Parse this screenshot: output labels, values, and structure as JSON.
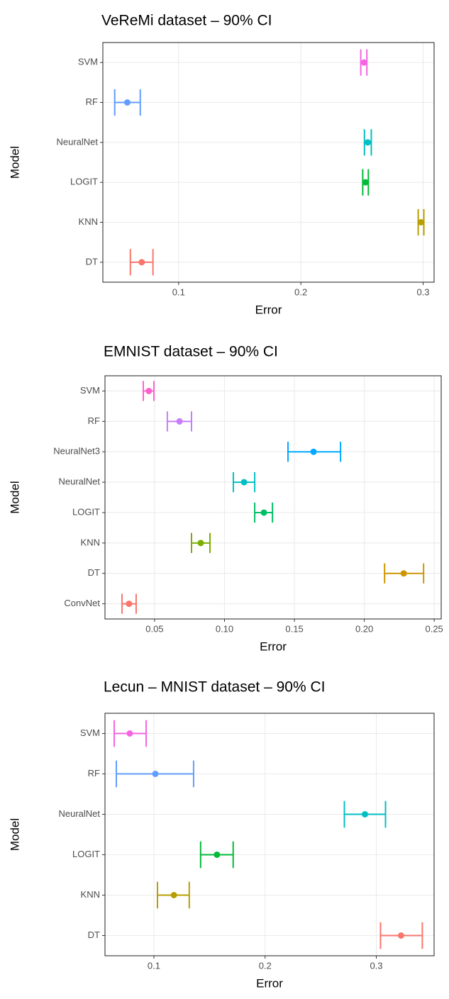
{
  "chart_data": [
    {
      "type": "errorbar",
      "title": "VeReMi dataset – 90% CI",
      "x_label": "Error",
      "y_label": "Model",
      "categories": [
        "DT",
        "KNN",
        "LOGIT",
        "NeuralNet",
        "RF",
        "SVM"
      ],
      "values": [
        0.0698,
        0.2983,
        0.2529,
        0.2547,
        0.058,
        0.2517
      ],
      "lower": [
        0.0605,
        0.296,
        0.2506,
        0.252,
        0.0477,
        0.249
      ],
      "upper": [
        0.079,
        0.3006,
        0.2552,
        0.2576,
        0.0686,
        0.254
      ],
      "colors": [
        "#F8766D",
        "#B79F00",
        "#00BA38",
        "#00BFC4",
        "#619CFF",
        "#F564E3"
      ],
      "xlim": [
        0.038,
        0.309
      ],
      "xticks": [
        0.1,
        0.2,
        0.3
      ],
      "grid": true
    },
    {
      "type": "errorbar",
      "title": "EMNIST dataset – 90% CI",
      "x_label": "Error",
      "y_label": "Model",
      "categories": [
        "ConvNet",
        "DT",
        "KNN",
        "LOGIT",
        "NeuralNet",
        "NeuralNet3",
        "RF",
        "SVM"
      ],
      "values": [
        0.0317,
        0.2282,
        0.083,
        0.1282,
        0.114,
        0.1637,
        0.0678,
        0.0459
      ],
      "lower": [
        0.0267,
        0.2145,
        0.0764,
        0.1216,
        0.1063,
        0.1454,
        0.0591,
        0.0419
      ],
      "upper": [
        0.0368,
        0.2424,
        0.0896,
        0.1343,
        0.1216,
        0.183,
        0.0764,
        0.0495
      ],
      "colors": [
        "#F8766D",
        "#CD9600",
        "#7CAE00",
        "#00BE67",
        "#00BFC4",
        "#00A9FF",
        "#C77CFF",
        "#FF61CC"
      ],
      "xlim": [
        0.0145,
        0.255
      ],
      "xticks": [
        0.05,
        {
          "value": 0.1,
          "label": "0.10"
        },
        0.15,
        {
          "value": 0.2,
          "label": "0.20"
        },
        0.25
      ],
      "grid": true
    },
    {
      "type": "errorbar",
      "title": "Lecun – MNIST dataset – 90% CI",
      "x_label": "Error",
      "y_label": "Model",
      "categories": [
        "DT",
        "KNN",
        "LOGIT",
        "NeuralNet",
        "RF",
        "SVM"
      ],
      "values": [
        0.3223,
        0.118,
        0.1567,
        0.2898,
        0.1013,
        0.0783
      ],
      "lower": [
        0.3038,
        0.1032,
        0.142,
        0.2713,
        0.0662,
        0.0643
      ],
      "upper": [
        0.3414,
        0.1318,
        0.1713,
        0.3083,
        0.1357,
        0.093
      ],
      "colors": [
        "#F8766D",
        "#B79F00",
        "#00BA38",
        "#00BFC4",
        "#619CFF",
        "#F564E3"
      ],
      "xlim": [
        0.056,
        0.352
      ],
      "xticks": [
        0.1,
        0.2,
        0.3
      ],
      "grid": true
    }
  ]
}
